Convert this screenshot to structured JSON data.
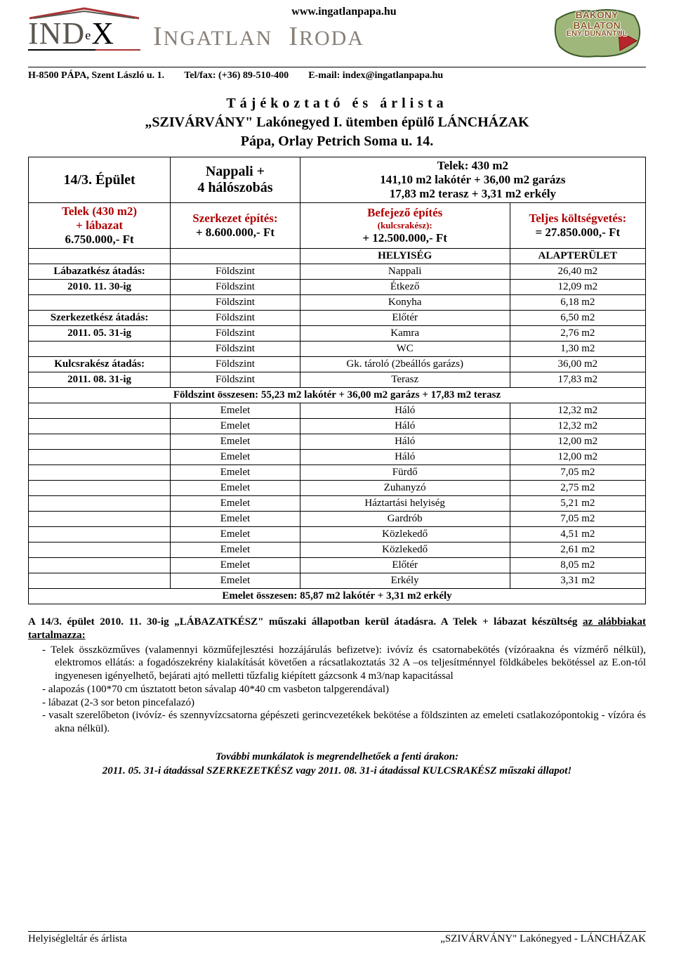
{
  "header": {
    "site_url": "www.ingatlanpapa.hu",
    "brand_line": "INGATLAN IRODA",
    "address": "H-8500 PÁPA, Szent László u. 1.",
    "phone": "Tel/fax: (+36) 89-510-400",
    "email": "E-mail: index@ingatlanpapa.hu",
    "region_l1": "BAKONY",
    "region_l2": "BALATON",
    "region_l3": "ÉNY-DUNÁNTÚL",
    "logo_text": "INDeX"
  },
  "title": {
    "l1": "Tájékoztató és árlista",
    "l2": "„SZIVÁRVÁNY\" Lakónegyed I. ütemben épülő LÁNCHÁZAK",
    "l3": "Pápa, Orlay Petrich Soma u. 14."
  },
  "spec": {
    "building_label": "14/3. Épület",
    "rooms_l1": "Nappali +",
    "rooms_l2": "4 hálószobás",
    "plot_l1": "Telek: 430 m2",
    "plot_l2": "141,10 m2 lakótér + 36,00 m2 garázs",
    "plot_l3": "17,83 m2 terasz + 3,31 m2 erkély",
    "base_l1": "Telek (430 m2)",
    "base_l2": "+ lábazat",
    "base_l3": "6.750.000,- Ft",
    "struct_l1": "Szerkezet építés:",
    "struct_l2": "+ 8.600.000,- Ft",
    "finish_l1": "Befejező építés",
    "finish_l2": "(kulcsrakész):",
    "finish_l3": "+ 12.500.000,- Ft",
    "total_l1": "Teljes költségvetés:",
    "total_l2": "= 27.850.000,- Ft"
  },
  "table": {
    "col_room": "HELYISÉG",
    "col_area": "ALAPTERÜLET",
    "rows_ground": [
      {
        "left": "Lábazatkész átadás:",
        "floor": "Földszint",
        "room": "Nappali",
        "area": "26,40 m2"
      },
      {
        "left": "2010. 11. 30-ig",
        "floor": "Földszint",
        "room": "Étkező",
        "area": "12,09 m2"
      },
      {
        "left": "",
        "floor": "Földszint",
        "room": "Konyha",
        "area": "6,18 m2"
      },
      {
        "left": "Szerkezetkész átadás:",
        "floor": "Földszint",
        "room": "Előtér",
        "area": "6,50 m2"
      },
      {
        "left": "2011. 05. 31-ig",
        "floor": "Földszint",
        "room": "Kamra",
        "area": "2,76 m2"
      },
      {
        "left": "",
        "floor": "Földszint",
        "room": "WC",
        "area": "1,30 m2"
      },
      {
        "left": "Kulcsrakész átadás:",
        "floor": "Földszint",
        "room": "Gk. tároló (2beállós garázs)",
        "area": "36,00 m2"
      },
      {
        "left": "2011. 08. 31-ig",
        "floor": "Földszint",
        "room": "Terasz",
        "area": "17,83 m2"
      }
    ],
    "ground_sum": "Földszint összesen:   55,23 m2 lakótér + 36,00 m2 garázs + 17,83 m2 terasz",
    "rows_upper": [
      {
        "floor": "Emelet",
        "room": "Háló",
        "area": "12,32 m2"
      },
      {
        "floor": "Emelet",
        "room": "Háló",
        "area": "12,32 m2"
      },
      {
        "floor": "Emelet",
        "room": "Háló",
        "area": "12,00 m2"
      },
      {
        "floor": "Emelet",
        "room": "Háló",
        "area": "12,00 m2"
      },
      {
        "floor": "Emelet",
        "room": "Fürdő",
        "area": "7,05 m2"
      },
      {
        "floor": "Emelet",
        "room": "Zuhanyzó",
        "area": "2,75 m2"
      },
      {
        "floor": "Emelet",
        "room": "Háztartási helyiség",
        "area": "5,21 m2"
      },
      {
        "floor": "Emelet",
        "room": "Gardrób",
        "area": "7,05 m2"
      },
      {
        "floor": "Emelet",
        "room": "Közlekedő",
        "area": "4,51 m2"
      },
      {
        "floor": "Emelet",
        "room": "Közlekedő",
        "area": "2,61 m2"
      },
      {
        "floor": "Emelet",
        "room": "Előtér",
        "area": "8,05 m2"
      },
      {
        "floor": "Emelet",
        "room": "Erkély",
        "area": "3,31 m2"
      }
    ],
    "upper_sum": "Emelet összesen:   85,87 m2 lakótér + 3,31 m2 erkély"
  },
  "body": {
    "lead_plain": "A 14/3. épület 2010. 11. 30-ig „LÁBAZATKÉSZ\" műszaki állapotban kerül átadásra. A Telek + lábazat készültség ",
    "lead_u": "az alábbiakat tartalmazza:",
    "items": [
      "Telek összközműves (valamennyi közműfejlesztési hozzájárulás befizetve): ivóvíz és csatornabekötés (vízóraakna és vízmérő nélkül), elektromos ellátás: a fogadószekrény kialakítását követően a rácsatlakoztatás 32 A –os teljesítménnyel földkábeles bekötéssel az E.on-tól ingyenesen igényelhető, bejárati ajtó melletti tűzfalig kiépített gázcsonk 4 m3/nap kapacitással",
      "alapozás (100*70 cm úsztatott beton sávalap 40*40 cm vasbeton talpgerendával)",
      "lábazat (2-3 sor beton pincefalazó)",
      "vasalt szerelőbeton (ivóvíz- és szennyvízcsatorna gépészeti gerincvezetékek bekötése a földszinten az emeleti csatlakozópontokig - vízóra és akna nélkül)."
    ]
  },
  "closing": {
    "l1": "További munkálatok is megrendelhetőek a fenti árakon:",
    "l2": "2011. 05. 31-i átadással SZERKEZETKÉSZ vagy 2011. 08. 31-i átadással KULCSRAKÉSZ műszaki állapot!"
  },
  "footer": {
    "left": "Helyiségleltár és árlista",
    "right": "„SZIVÁRVÁNY\" Lakónegyed - LÁNCHÁZAK"
  },
  "style": {
    "red": "#b00000",
    "grey_brand": "#888078",
    "region_fill": "#9fb77a",
    "region_stroke": "#3a5a2a",
    "region_text": "#8a5a2a"
  }
}
